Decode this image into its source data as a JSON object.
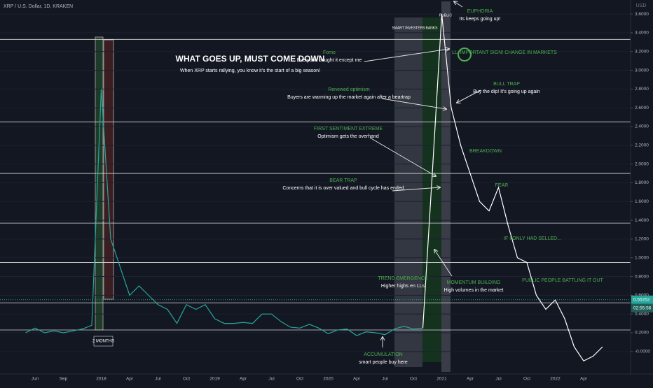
{
  "chart_data": {
    "type": "line",
    "header": "XRP / U.S. Dollar, 1D, KRAKEN",
    "title": "WHAT GOES UP, MUST COME DOWN",
    "subtitle": "When XRP starts rallying, you know it's the start of a big season!",
    "currency": "USD",
    "categories": [
      null,
      "Jun",
      null,
      null,
      "Sep",
      null,
      null,
      null,
      "2018",
      null,
      null,
      "Apr",
      null,
      null,
      "Jul",
      null,
      null,
      "Oct",
      null,
      null,
      "2019",
      null,
      null,
      "Apr",
      null,
      null,
      "Jul",
      null,
      null,
      "Oct",
      null,
      null,
      "2020",
      null,
      null,
      "Apr",
      null,
      null,
      "Jul",
      null,
      null,
      "Oct",
      null,
      null,
      "2021",
      null,
      null,
      "Apr",
      null,
      null,
      "Jul",
      null,
      null,
      "Oct",
      null,
      null,
      "2022",
      null,
      null,
      "Apr",
      null,
      null
    ],
    "series": [
      {
        "color": "#26a69a",
        "values": [
          0.2,
          0.25,
          0.2,
          0.22,
          0.2,
          0.22,
          0.24,
          0.28,
          2.8,
          1.2,
          0.9,
          0.6,
          0.7,
          0.6,
          0.5,
          0.45,
          0.3,
          0.5,
          0.45,
          0.5,
          0.35,
          0.3,
          0.3,
          0.31,
          0.3,
          0.4,
          0.4,
          0.32,
          0.26,
          0.25,
          0.29,
          0.25,
          0.19,
          0.23,
          0.24,
          0.17,
          0.21,
          0.2,
          0.18,
          0.24,
          0.27,
          0.24,
          0.25,
          null,
          null,
          null,
          null,
          null,
          null,
          null,
          null,
          null,
          null,
          null,
          null,
          null,
          null,
          null,
          null,
          null,
          null,
          null
        ]
      },
      {
        "color": "#ffffff",
        "values": [
          null,
          null,
          null,
          null,
          null,
          null,
          null,
          null,
          null,
          null,
          null,
          null,
          null,
          null,
          null,
          null,
          null,
          null,
          null,
          null,
          null,
          null,
          null,
          null,
          null,
          null,
          null,
          null,
          null,
          null,
          null,
          null,
          null,
          null,
          null,
          null,
          null,
          null,
          null,
          null,
          null,
          null,
          0.25,
          1.9,
          3.6,
          2.6,
          2.2,
          1.9,
          1.6,
          1.5,
          1.75,
          1.35,
          1.0,
          0.95,
          0.6,
          0.45,
          0.55,
          0.35,
          0.05,
          -0.1,
          -0.05,
          0.05
        ]
      }
    ],
    "ylim": [
      -0.24,
      3.75
    ],
    "yticks": [
      {
        "value": -0.0,
        "label": "-0.0000"
      },
      {
        "value": 0.2,
        "label": "0.2000"
      },
      {
        "value": 0.4,
        "label": "0.4000"
      },
      {
        "value": 0.6,
        "label": "0.6000"
      },
      {
        "value": 0.8,
        "label": "0.8000"
      },
      {
        "value": 1,
        "label": "1.0000"
      },
      {
        "value": 1.2,
        "label": "1.2000"
      },
      {
        "value": 1.4,
        "label": "1.4000"
      },
      {
        "value": 1.6,
        "label": "1.6000"
      },
      {
        "value": 1.8,
        "label": "1.8000"
      },
      {
        "value": 2,
        "label": "2.0000"
      },
      {
        "value": 2.2,
        "label": "2.2000"
      },
      {
        "value": 2.4,
        "label": "2.4000"
      },
      {
        "value": 2.6,
        "label": "2.6000"
      },
      {
        "value": 2.8,
        "label": "2.8000"
      },
      {
        "value": 3,
        "label": "3.0000"
      },
      {
        "value": 3.2,
        "label": "3.2000"
      },
      {
        "value": 3.4,
        "label": "3.4000"
      },
      {
        "value": 3.6,
        "label": "3.6000"
      }
    ],
    "levels": [
      3.33,
      2.45,
      1.9,
      1.37,
      0.95,
      0.52,
      0.23
    ],
    "last_price": 0.55252,
    "countdown": "02:55:56",
    "zones": [
      "SMART INVESTERS",
      "BANKS",
      "PUBLIC"
    ],
    "period_label": "2 MONTHS",
    "annotations": [
      {
        "heading": "Fomo",
        "text": "Everyone bought it except me"
      },
      {
        "heading": "Renewed optimism",
        "text": "Buyers are warming up the market again after a beartrap"
      },
      {
        "heading": "FIRST SENTIMENT EXTREME",
        "text": "Optimism gets the overhand"
      },
      {
        "heading": "BEAR TRAP",
        "text": "Concerns that it is over valued and bull cycle has ended"
      },
      {
        "heading": "TREND EMERGENCE",
        "text": "Higher highs en LLs"
      },
      {
        "heading": "ACCUMULATION",
        "text": "smart people buy here"
      },
      {
        "heading": "MOMENTUM BUILDING",
        "text": "High volumes in the market"
      },
      {
        "heading": "EUPHORIA",
        "text": "Its keeps going up!"
      },
      {
        "heading": "LL, IMPORTANT SIGN! CHANGE IN MARKETS"
      },
      {
        "heading": "BULL TRAP",
        "text": "Buy the dip! It's going up again"
      },
      {
        "heading": "BREAKDOWN"
      },
      {
        "heading": "FEAR"
      },
      {
        "heading": "IF I ONLY HAD SELLED..."
      },
      {
        "heading": "PUBLIC PEOPLE BATTLING IT OUT"
      }
    ]
  }
}
